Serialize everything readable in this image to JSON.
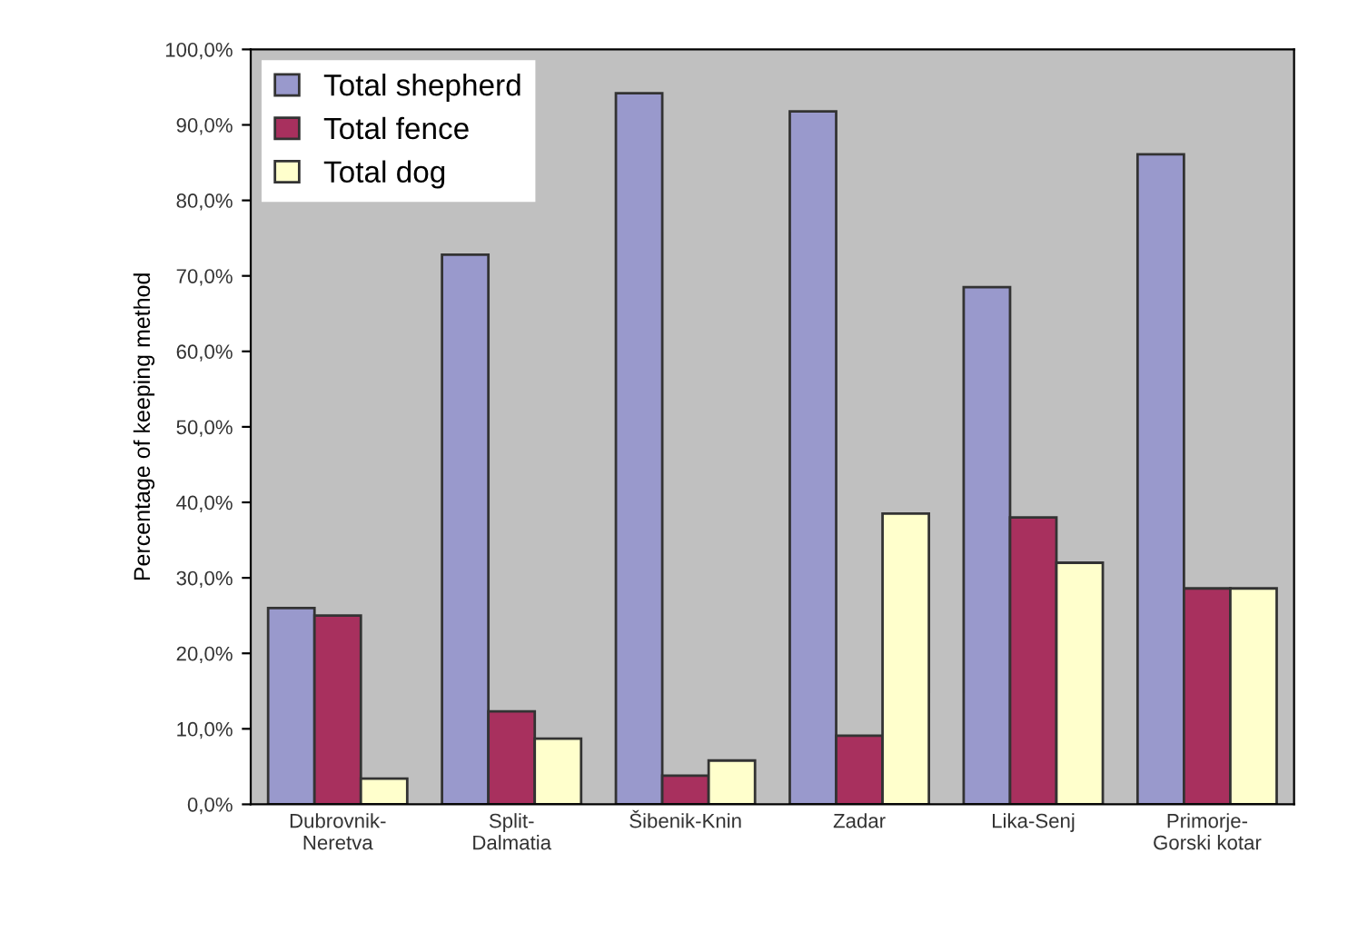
{
  "chart_data": {
    "type": "bar",
    "ylabel": "Percentage of keeping method",
    "categories": [
      "Dubrovnik-\nNeretva",
      "Split-\nDalmatia",
      "Šibenik-Knin",
      "Zadar",
      "Lika-Senj",
      "Primorje-\nGorski kotar"
    ],
    "series": [
      {
        "name": "Total shepherd",
        "color": "#9999cc",
        "values": [
          26.0,
          72.8,
          94.2,
          91.8,
          68.5,
          86.1
        ]
      },
      {
        "name": "Total fence",
        "color": "#a8305e",
        "values": [
          25.0,
          12.3,
          3.8,
          9.1,
          38.0,
          28.6
        ]
      },
      {
        "name": "Total dog",
        "color": "#ffffcc",
        "values": [
          3.4,
          8.7,
          5.8,
          38.5,
          32.0,
          28.6
        ]
      }
    ],
    "ylim": [
      0,
      100
    ],
    "yticks": [
      {
        "value": 0,
        "label": "0,0%"
      },
      {
        "value": 10,
        "label": "10,0%"
      },
      {
        "value": 20,
        "label": "20,0%"
      },
      {
        "value": 30,
        "label": "30,0%"
      },
      {
        "value": 40,
        "label": "40,0%"
      },
      {
        "value": 50,
        "label": "50,0%"
      },
      {
        "value": 60,
        "label": "60,0%"
      },
      {
        "value": 70,
        "label": "70,0%"
      },
      {
        "value": 80,
        "label": "80,0%"
      },
      {
        "value": 90,
        "label": "90,0%"
      },
      {
        "value": 100,
        "label": "100,0%"
      }
    ],
    "grid": false,
    "legend": "top left"
  }
}
